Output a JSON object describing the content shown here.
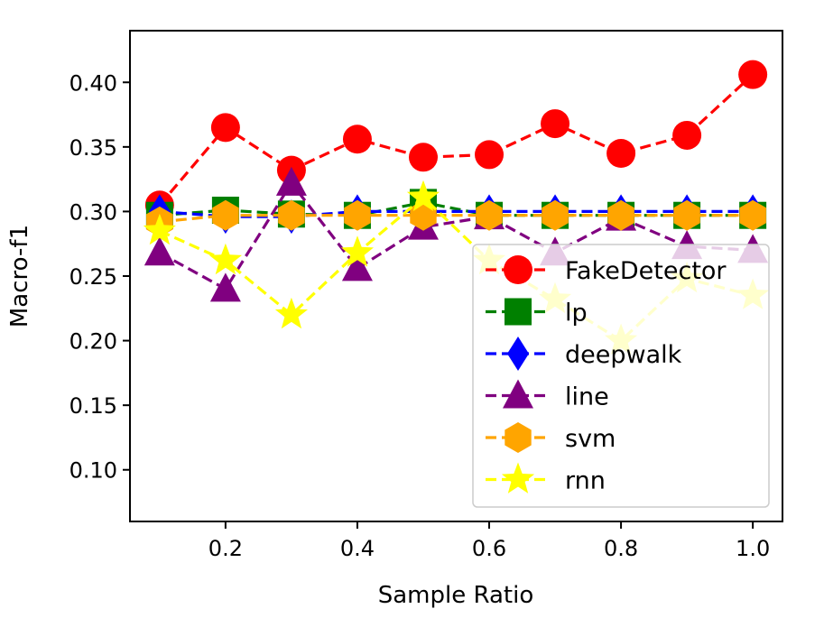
{
  "chart_data": {
    "type": "line",
    "title": "",
    "xlabel": "Sample Ratio",
    "ylabel": "Macro-f1",
    "xlim": [
      0.055,
      1.045
    ],
    "ylim": [
      0.06,
      0.44
    ],
    "xticks": [
      0.2,
      0.4,
      0.6,
      0.8,
      1.0
    ],
    "xtick_labels": [
      "0.2",
      "0.4",
      "0.6",
      "0.8",
      "1.0"
    ],
    "yticks": [
      0.1,
      0.15,
      0.2,
      0.25,
      0.3,
      0.35,
      0.4
    ],
    "ytick_labels": [
      "0.10",
      "0.15",
      "0.20",
      "0.25",
      "0.30",
      "0.35",
      "0.40"
    ],
    "grid": false,
    "legend_position": "lower-right",
    "x": [
      0.1,
      0.2,
      0.3,
      0.4,
      0.5,
      0.6,
      0.7,
      0.8,
      0.9,
      1.0
    ],
    "series": [
      {
        "name": "FakeDetector",
        "color": "#ff0000",
        "marker": "circle",
        "values": [
          0.305,
          0.365,
          0.332,
          0.356,
          0.342,
          0.344,
          0.368,
          0.345,
          0.359,
          0.406
        ]
      },
      {
        "name": "lp",
        "color": "#008000",
        "marker": "square",
        "values": [
          0.297,
          0.301,
          0.298,
          0.297,
          0.307,
          0.297,
          0.297,
          0.297,
          0.297,
          0.297
        ]
      },
      {
        "name": "deepwalk",
        "color": "#0000ff",
        "marker": "diamond",
        "values": [
          0.3,
          0.296,
          0.296,
          0.3,
          0.3,
          0.3,
          0.3,
          0.3,
          0.3,
          0.3
        ]
      },
      {
        "name": "line",
        "color": "#800080",
        "marker": "triangle",
        "values": [
          0.268,
          0.24,
          0.322,
          0.256,
          0.288,
          0.296,
          0.268,
          0.295,
          0.273,
          0.27
        ]
      },
      {
        "name": "svm",
        "color": "#ffa500",
        "marker": "hexagon",
        "values": [
          0.292,
          0.297,
          0.297,
          0.297,
          0.297,
          0.297,
          0.297,
          0.297,
          0.297,
          0.297
        ]
      },
      {
        "name": "rnn",
        "color": "#ffff00",
        "marker": "star",
        "values": [
          0.285,
          0.262,
          0.22,
          0.268,
          0.311,
          0.262,
          0.232,
          0.2,
          0.248,
          0.235
        ]
      }
    ]
  }
}
